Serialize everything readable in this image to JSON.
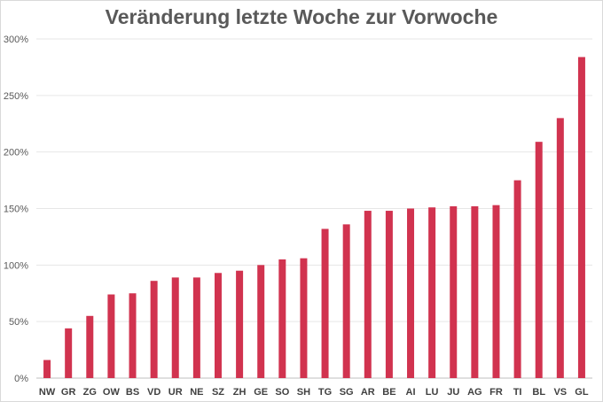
{
  "chart_data": {
    "type": "bar",
    "title": "Veränderung letzte Woche zur Vorwoche",
    "xlabel": "",
    "ylabel": "",
    "categories": [
      "NW",
      "GR",
      "ZG",
      "OW",
      "BS",
      "VD",
      "UR",
      "NE",
      "SZ",
      "ZH",
      "GE",
      "SO",
      "SH",
      "TG",
      "SG",
      "AR",
      "BE",
      "AI",
      "LU",
      "JU",
      "AG",
      "FR",
      "TI",
      "BL",
      "VS",
      "GL"
    ],
    "values": [
      16,
      44,
      55,
      74,
      75,
      86,
      89,
      89,
      93,
      95,
      100,
      105,
      106,
      132,
      136,
      148,
      148,
      150,
      151,
      152,
      152,
      153,
      175,
      209,
      230,
      284
    ],
    "ylim": [
      0,
      300
    ],
    "yticks": [
      "0%",
      "50%",
      "100%",
      "150%",
      "200%",
      "250%",
      "300%"
    ],
    "grid": true,
    "legend": "none",
    "bar_color": "#d1334f",
    "grid_color": "#e6e6e6"
  }
}
